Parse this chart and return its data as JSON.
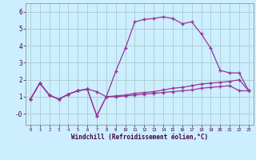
{
  "bg_color": "#cceeff",
  "line_color": "#993399",
  "grid_color": "#aacccc",
  "xlim": [
    -0.5,
    23.5
  ],
  "ylim": [
    -0.65,
    6.5
  ],
  "yticks": [
    0,
    1,
    2,
    3,
    4,
    5,
    6
  ],
  "ytick_labels": [
    "-0",
    "1",
    "2",
    "3",
    "4",
    "5",
    "6"
  ],
  "xticks": [
    0,
    1,
    2,
    3,
    4,
    5,
    6,
    7,
    8,
    9,
    10,
    11,
    12,
    13,
    14,
    15,
    16,
    17,
    18,
    19,
    20,
    21,
    22,
    23
  ],
  "xlabel": "Windchill (Refroidissement éolien,°C)",
  "series1_x": [
    0,
    1,
    2,
    3,
    4,
    5,
    6,
    7,
    8,
    9,
    10,
    11,
    12,
    13,
    14,
    15,
    16,
    17,
    18,
    19,
    20,
    21,
    22,
    23
  ],
  "series1_y": [
    0.85,
    1.8,
    1.1,
    0.85,
    1.15,
    1.35,
    1.45,
    1.3,
    1.0,
    1.0,
    1.05,
    1.1,
    1.15,
    1.2,
    1.25,
    1.3,
    1.35,
    1.4,
    1.5,
    1.55,
    1.6,
    1.65,
    1.35,
    1.35
  ],
  "series2_x": [
    0,
    1,
    2,
    3,
    4,
    5,
    6,
    7,
    8,
    9,
    10,
    11,
    12,
    13,
    14,
    15,
    16,
    17,
    18,
    19,
    20,
    21,
    22,
    23
  ],
  "series2_y": [
    0.85,
    1.8,
    1.1,
    0.85,
    1.15,
    1.35,
    1.45,
    -0.12,
    1.0,
    2.5,
    3.85,
    5.4,
    5.55,
    5.6,
    5.7,
    5.6,
    5.3,
    5.4,
    4.7,
    3.85,
    2.55,
    2.4,
    2.4,
    1.35
  ],
  "series3_x": [
    0,
    1,
    2,
    3,
    4,
    5,
    6,
    7,
    8,
    9,
    10,
    11,
    12,
    13,
    14,
    15,
    16,
    17,
    18,
    19,
    20,
    21,
    22,
    23
  ],
  "series3_y": [
    0.85,
    1.8,
    1.1,
    0.85,
    1.15,
    1.35,
    1.45,
    -0.12,
    1.0,
    1.05,
    1.1,
    1.2,
    1.25,
    1.3,
    1.4,
    1.5,
    1.55,
    1.65,
    1.75,
    1.8,
    1.85,
    1.9,
    2.0,
    1.35
  ]
}
